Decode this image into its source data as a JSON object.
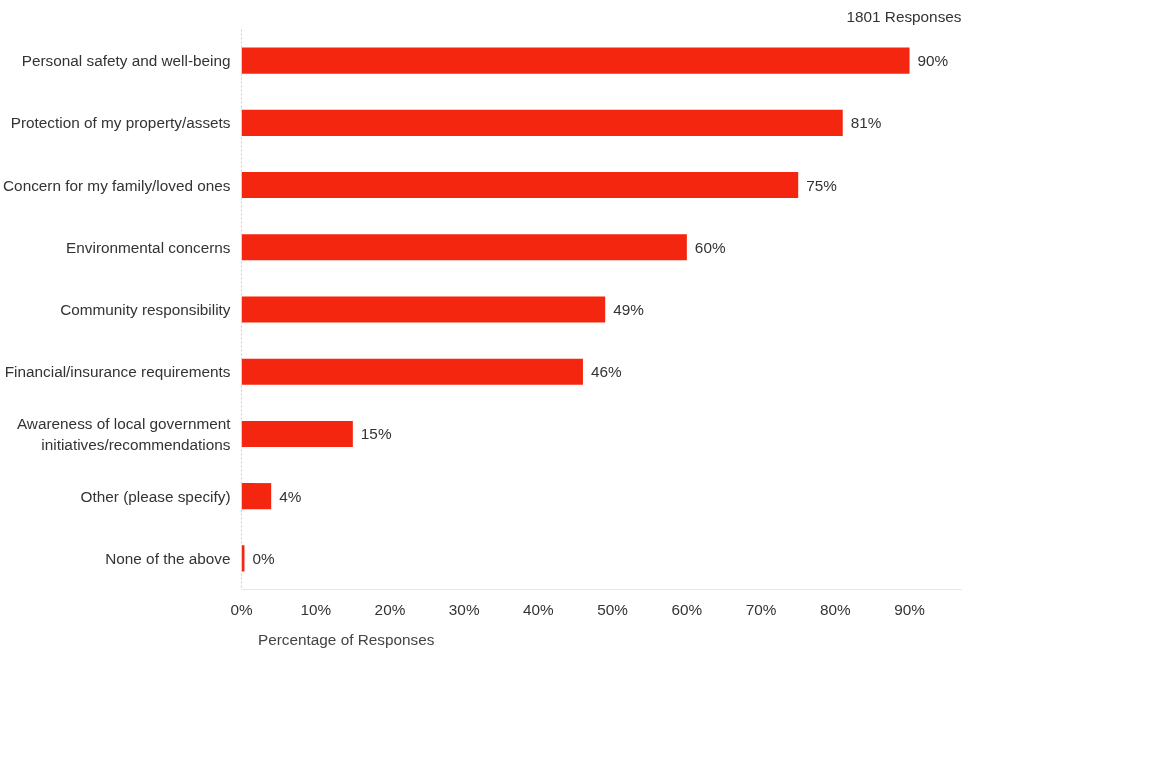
{
  "chart_data": {
    "type": "bar",
    "orientation": "horizontal",
    "subtitle": "1801 Responses",
    "categories": [
      "Personal safety and well-being",
      "Protection of my property/assets",
      "Concern for my family/loved ones",
      "Environmental concerns",
      "Community responsibility",
      "Financial/insurance requirements",
      "Awareness of local government initiatives/recommendations",
      "Other (please specify)",
      "None of the above"
    ],
    "series": [
      {
        "name": "Percentage of Responses",
        "color": "#f5260f",
        "values": [
          90,
          81,
          75,
          60,
          49,
          46,
          15,
          4,
          0.4
        ],
        "value_labels": [
          "90%",
          "81%",
          "75%",
          "60%",
          "49%",
          "46%",
          "15%",
          "4%",
          "0%"
        ]
      }
    ],
    "xlim": [
      0,
      97
    ],
    "xticks": [
      {
        "value": 0,
        "label": "0%"
      },
      {
        "value": 10,
        "label": "10%"
      },
      {
        "value": 20,
        "label": "20%"
      },
      {
        "value": 30,
        "label": "30%"
      },
      {
        "value": 40,
        "label": "40%"
      },
      {
        "value": 50,
        "label": "50%"
      },
      {
        "value": 60,
        "label": "60%"
      },
      {
        "value": 70,
        "label": "70%"
      },
      {
        "value": 80,
        "label": "80%"
      },
      {
        "value": 90,
        "label": "90%"
      }
    ],
    "grid": false,
    "legend": "bottom left"
  }
}
